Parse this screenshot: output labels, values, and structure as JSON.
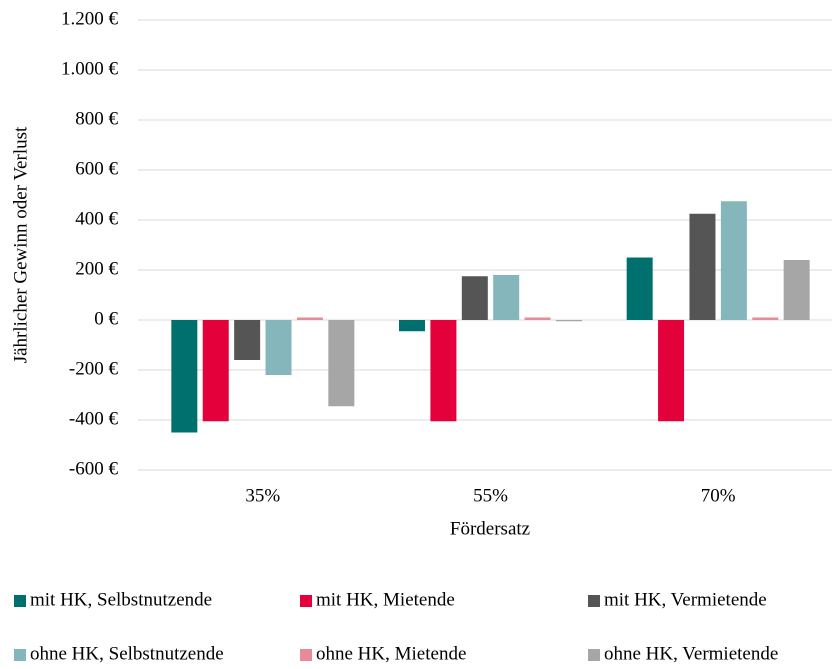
{
  "chart_data": {
    "type": "bar",
    "x_label": "Fördersatz",
    "y_label": "Jährlicher Gewinn oder Verlust",
    "categories": [
      "35%",
      "55%",
      "70%"
    ],
    "series": [
      {
        "name": "mit HK, Selbstnutzende",
        "color": "#00706e",
        "values": [
          -450,
          -45,
          250
        ]
      },
      {
        "name": "mit HK, Mietende",
        "color": "#e4003a",
        "values": [
          -405,
          -405,
          -405
        ]
      },
      {
        "name": "mit HK, Vermietende",
        "color": "#555555",
        "values": [
          -160,
          175,
          425
        ]
      },
      {
        "name": "ohne HK, Selbstnutzende",
        "color": "#84b6bb",
        "values": [
          -220,
          180,
          475
        ]
      },
      {
        "name": "ohne HK, Mietende",
        "color": "#e88a98",
        "values": [
          10,
          10,
          10
        ]
      },
      {
        "name": "ohne HK, Vermietende",
        "color": "#a6a6a6",
        "values": [
          -345,
          -5,
          240
        ]
      }
    ],
    "ylim": [
      -600,
      1200
    ],
    "yticks": [
      {
        "value": -600,
        "label": "-600 €"
      },
      {
        "value": -400,
        "label": "-400 €"
      },
      {
        "value": -200,
        "label": "-200 €"
      },
      {
        "value": 0,
        "label": "0 €"
      },
      {
        "value": 200,
        "label": "200 €"
      },
      {
        "value": 400,
        "label": "400 €"
      },
      {
        "value": 600,
        "label": "600 €"
      },
      {
        "value": 800,
        "label": "800 €"
      },
      {
        "value": 1000,
        "label": "1.000 €"
      },
      {
        "value": 1200,
        "label": "1.200 €"
      }
    ],
    "grid": true
  }
}
